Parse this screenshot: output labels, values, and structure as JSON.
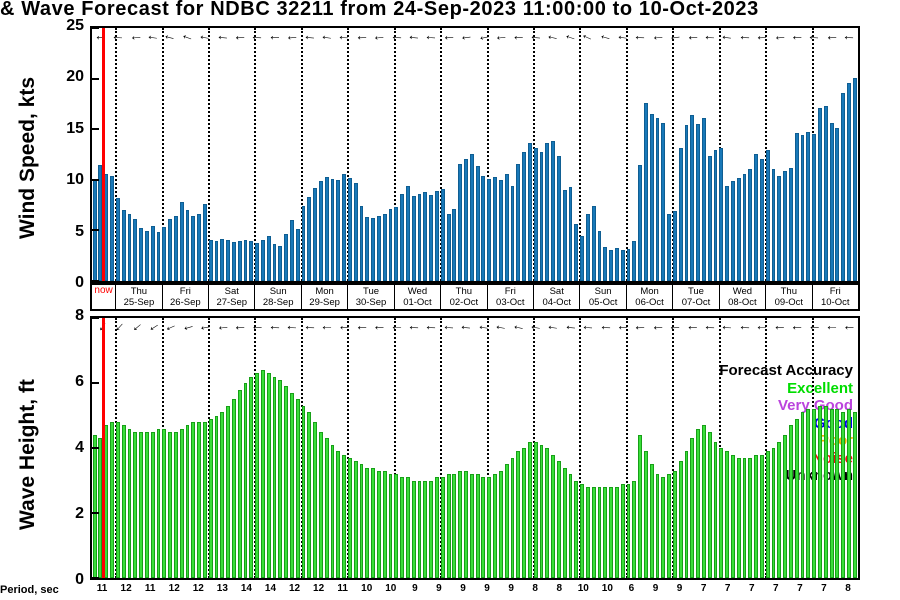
{
  "title": "& Wave Forecast for NDBC 32211 from 24-Sep-2023 11:00:00 to 10-Oct-2023",
  "now_label": "now",
  "x_axis": {
    "days": [
      {
        "dow": "Thu",
        "date": "25-Sep"
      },
      {
        "dow": "Fri",
        "date": "26-Sep"
      },
      {
        "dow": "Sat",
        "date": "27-Sep"
      },
      {
        "dow": "Sun",
        "date": "28-Sep"
      },
      {
        "dow": "Mon",
        "date": "29-Sep"
      },
      {
        "dow": "Tue",
        "date": "30-Sep"
      },
      {
        "dow": "Wed",
        "date": "01-Oct"
      },
      {
        "dow": "Thu",
        "date": "02-Oct"
      },
      {
        "dow": "Fri",
        "date": "03-Oct"
      },
      {
        "dow": "Sat",
        "date": "04-Oct"
      },
      {
        "dow": "Sun",
        "date": "05-Oct"
      },
      {
        "dow": "Mon",
        "date": "06-Oct"
      },
      {
        "dow": "Tue",
        "date": "07-Oct"
      },
      {
        "dow": "Wed",
        "date": "08-Oct"
      },
      {
        "dow": "Thu",
        "date": "09-Oct"
      },
      {
        "dow": "Fri",
        "date": "10-Oct"
      }
    ]
  },
  "period_axis": {
    "label": "Period, sec",
    "values": [
      11,
      12,
      11,
      12,
      12,
      13,
      14,
      14,
      12,
      12,
      11,
      10,
      10,
      9,
      9,
      9,
      9,
      9,
      8,
      8,
      10,
      10,
      6,
      9,
      9,
      7,
      7,
      7,
      7,
      7,
      7,
      8
    ]
  },
  "legend": {
    "title": "Forecast Accuracy",
    "items": [
      {
        "label": "Excellent",
        "color": "#00dd00"
      },
      {
        "label": "Very Good",
        "color": "#bb44dd"
      },
      {
        "label": "Good",
        "color": "#0000ee"
      },
      {
        "label": "Poor",
        "color": "#f0b000"
      },
      {
        "label": "Noise",
        "color": "#ee1111"
      },
      {
        "label": "Unknown",
        "color": "#000000"
      }
    ]
  },
  "colors": {
    "now_line": "#ff0000",
    "wind_bar": "#1878b8",
    "wave_bar": "#3ade3a",
    "grid": "#000000"
  },
  "chart_data": [
    {
      "type": "bar",
      "panel": "wind",
      "ylabel": "Wind Speed, kts",
      "ylim": [
        0,
        25
      ],
      "yticks": [
        0,
        5,
        10,
        15,
        20,
        25
      ],
      "grid": "vertical-dotted-daily",
      "bar_color": "#1878b8",
      "values": [
        10.0,
        11.5,
        10.6,
        10.4,
        8.2,
        7.0,
        6.6,
        6.1,
        5.2,
        4.9,
        5.4,
        4.8,
        5.3,
        6.1,
        6.4,
        7.8,
        7.0,
        6.4,
        6.6,
        7.6,
        4.1,
        4.0,
        4.2,
        4.1,
        3.9,
        4.0,
        4.1,
        4.0,
        3.8,
        4.1,
        4.4,
        3.7,
        3.5,
        4.6,
        6.0,
        5.1,
        7.4,
        8.3,
        9.2,
        9.9,
        10.3,
        10.1,
        10.0,
        10.6,
        10.2,
        9.7,
        7.4,
        6.3,
        6.2,
        6.4,
        6.6,
        7.1,
        7.3,
        8.6,
        9.4,
        8.4,
        8.6,
        8.8,
        8.5,
        8.9,
        9.1,
        6.6,
        7.1,
        11.6,
        12.1,
        12.6,
        11.4,
        10.4,
        10.1,
        10.3,
        10.0,
        10.6,
        9.4,
        11.6,
        12.7,
        13.6,
        13.1,
        12.7,
        13.6,
        13.8,
        12.4,
        9.0,
        9.3,
        5.6,
        4.4,
        6.6,
        7.4,
        4.9,
        3.4,
        3.1,
        3.3,
        3.1,
        3.2,
        4.0,
        11.5,
        17.6,
        16.5,
        16.1,
        15.6,
        6.6,
        6.9,
        13.1,
        15.4,
        16.4,
        15.5,
        16.1,
        12.4,
        12.9,
        13.1,
        9.4,
        9.9,
        10.2,
        10.6,
        11.1,
        12.6,
        12.1,
        12.9,
        11.1,
        10.4,
        10.9,
        11.2,
        14.6,
        14.4,
        14.7,
        14.5,
        17.1,
        17.3,
        15.6,
        15.1,
        18.6,
        19.6,
        20.1
      ],
      "arrow_rotations_deg": [
        0,
        3,
        -4,
        8,
        14,
        20,
        10,
        5,
        -3,
        2,
        0,
        -5,
        5,
        8,
        3,
        -2,
        -6,
        2,
        6,
        4,
        -3,
        -8,
        -12,
        -6,
        0,
        6,
        12,
        18,
        24,
        16,
        8,
        2,
        -4,
        -8,
        -3,
        3,
        7,
        2,
        -2,
        -5,
        0,
        4,
        -3,
        2
      ]
    },
    {
      "type": "bar",
      "panel": "wave",
      "ylabel": "Wave Height, ft",
      "ylim": [
        0,
        8
      ],
      "yticks": [
        0,
        2,
        4,
        6,
        8
      ],
      "grid": "vertical-dotted-daily",
      "legend_position": "lower-right",
      "bar_color": "#3ade3a",
      "values": [
        4.4,
        4.3,
        4.7,
        4.8,
        4.8,
        4.7,
        4.6,
        4.5,
        4.5,
        4.5,
        4.5,
        4.6,
        4.6,
        4.5,
        4.5,
        4.6,
        4.7,
        4.8,
        4.8,
        4.8,
        4.9,
        5.0,
        5.1,
        5.3,
        5.5,
        5.8,
        6.0,
        6.2,
        6.3,
        6.4,
        6.3,
        6.2,
        6.1,
        5.9,
        5.7,
        5.5,
        5.3,
        5.1,
        4.8,
        4.5,
        4.3,
        4.1,
        3.9,
        3.8,
        3.7,
        3.6,
        3.5,
        3.4,
        3.4,
        3.3,
        3.3,
        3.2,
        3.2,
        3.1,
        3.1,
        3.0,
        3.0,
        3.0,
        3.0,
        3.1,
        3.1,
        3.2,
        3.2,
        3.3,
        3.3,
        3.2,
        3.2,
        3.1,
        3.1,
        3.2,
        3.3,
        3.5,
        3.7,
        3.9,
        4.0,
        4.2,
        4.2,
        4.1,
        4.0,
        3.8,
        3.6,
        3.4,
        3.2,
        3.0,
        2.9,
        2.8,
        2.8,
        2.8,
        2.8,
        2.8,
        2.8,
        2.9,
        2.9,
        3.0,
        4.4,
        3.9,
        3.5,
        3.2,
        3.1,
        3.2,
        3.3,
        3.6,
        3.9,
        4.3,
        4.6,
        4.7,
        4.5,
        4.2,
        4.0,
        3.9,
        3.8,
        3.7,
        3.7,
        3.7,
        3.8,
        3.8,
        3.9,
        4.0,
        4.2,
        4.4,
        4.7,
        4.9,
        5.1,
        5.2,
        5.2,
        5.3,
        5.3,
        5.2,
        5.2,
        5.1,
        5.2,
        5.1
      ],
      "arrow_rotations_deg": [
        -55,
        -48,
        -40,
        -32,
        -24,
        -16,
        -10,
        -6,
        -3,
        0,
        2,
        3,
        2,
        1,
        0,
        -1,
        0,
        1,
        2,
        2,
        4,
        6,
        8,
        10,
        12,
        10,
        8,
        6,
        4,
        2,
        0,
        -2,
        -3,
        -2,
        0,
        2,
        3,
        2,
        1,
        0,
        -1,
        0,
        1,
        0
      ]
    }
  ]
}
